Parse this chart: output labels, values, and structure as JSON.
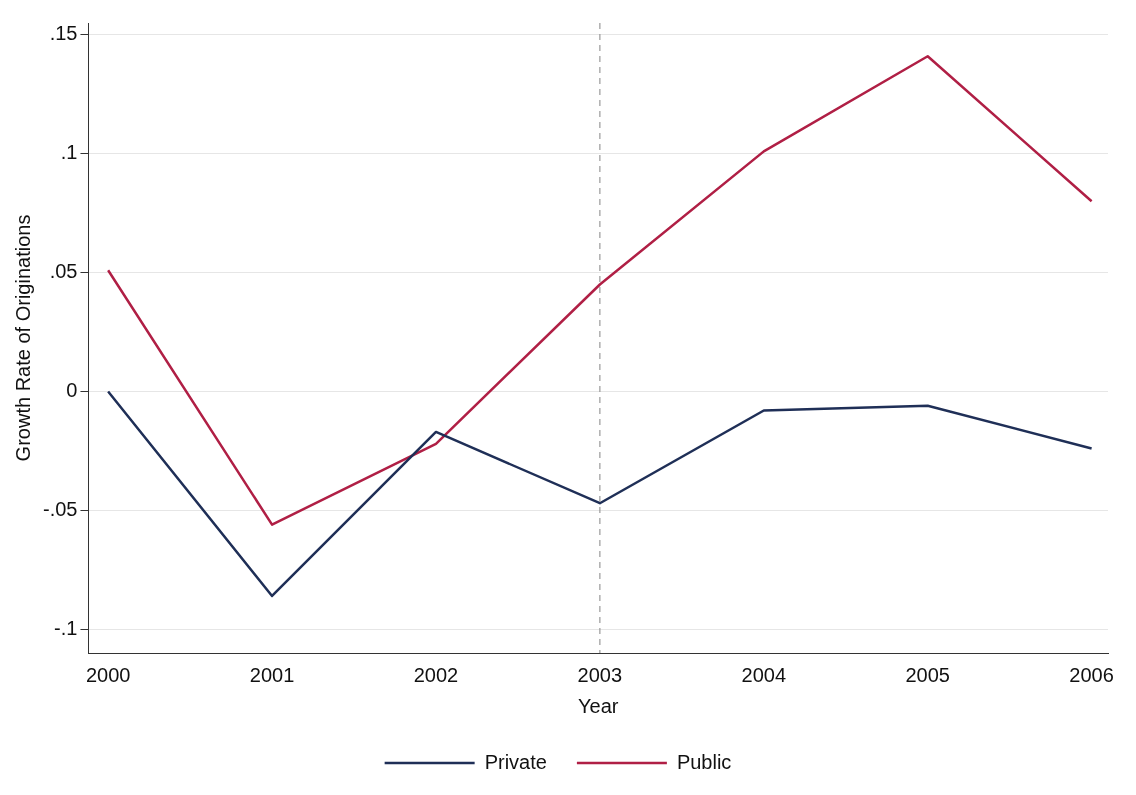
{
  "chart_data": {
    "type": "line",
    "xlabel": "Year",
    "ylabel": "Growth Rate of Originations",
    "x": [
      2000,
      2001,
      2002,
      2003,
      2004,
      2005,
      2006
    ],
    "series": [
      {
        "name": "Private",
        "color": "#1f2f57",
        "values": [
          0.0,
          -0.086,
          -0.017,
          -0.047,
          -0.008,
          -0.006,
          -0.024
        ]
      },
      {
        "name": "Public",
        "color": "#b01f45",
        "values": [
          0.051,
          -0.056,
          -0.022,
          0.045,
          0.101,
          0.141,
          0.08
        ]
      }
    ],
    "xlim": [
      1999.88,
      2006.1
    ],
    "xticks": [
      2000,
      2001,
      2002,
      2003,
      2004,
      2005,
      2006
    ],
    "ylim": [
      -0.11,
      0.155
    ],
    "yticks": [
      {
        "value": -0.1,
        "label": "-.1"
      },
      {
        "value": -0.05,
        "label": "-.05"
      },
      0,
      {
        "value": 0.05,
        "label": ".05"
      },
      {
        "value": 0.1,
        "label": ".1"
      },
      {
        "value": 0.15,
        "label": ".15"
      }
    ],
    "ref_lines": [
      {
        "axis": "x",
        "value": 2003,
        "color": "#999999",
        "line_style": "dashed"
      }
    ],
    "grid": "y",
    "legend": "bottom",
    "marker": "none",
    "line_style": "solid"
  }
}
